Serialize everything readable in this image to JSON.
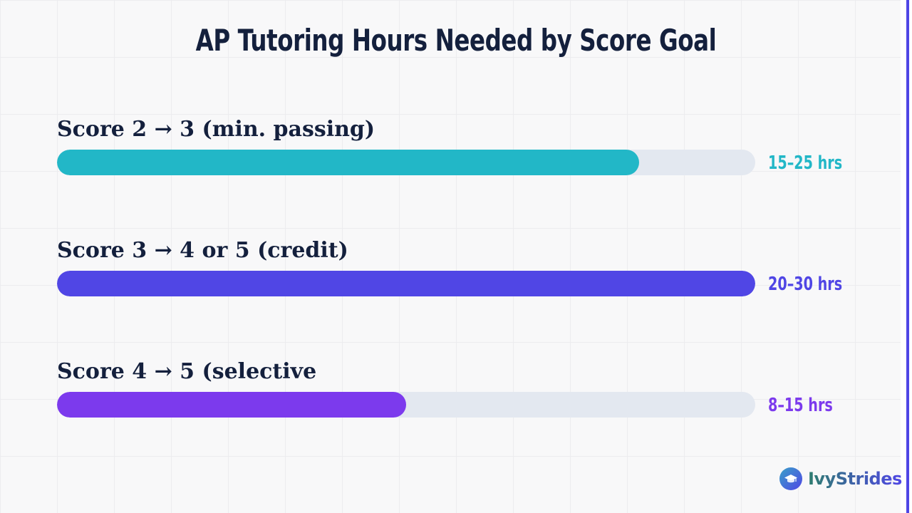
{
  "chart_data": {
    "type": "bar",
    "title": "AP Tutoring Hours Needed by Score Goal",
    "orientation": "horizontal",
    "xlim": [
      0,
      30
    ],
    "categories": [
      "Score 2 → 3 (min. passing)",
      "Score 3 → 4 or 5 (credit)",
      "Score 4 → 5 (selective"
    ],
    "values": [
      25,
      30,
      15
    ],
    "value_labels": [
      "15–25 hrs",
      "20–30 hrs",
      "8–15 hrs"
    ],
    "colors": [
      "#22b7c7",
      "#5046e5",
      "#7c3aed"
    ],
    "track_color": "#e3e8f0",
    "grid": true,
    "legend": "none"
  },
  "brand": {
    "name": "IvyStrides",
    "icon": "graduation-cap-icon"
  }
}
